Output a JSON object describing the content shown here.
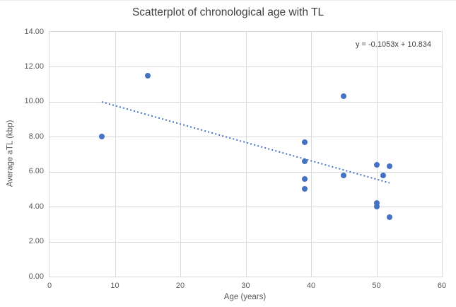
{
  "chart_data": {
    "type": "scatter",
    "title": "Scatterplot of chronological age with TL",
    "xlabel": "Age (years)",
    "ylabel": "Average aTL (kbp)",
    "xlim": [
      0,
      60
    ],
    "ylim": [
      0,
      14
    ],
    "x_ticks": [
      0,
      10,
      20,
      30,
      40,
      50,
      60
    ],
    "y_ticks": [
      0,
      2,
      4,
      6,
      8,
      10,
      12,
      14
    ],
    "y_tick_decimals": 2,
    "grid": true,
    "legend_position": "none",
    "points": [
      {
        "x": 8,
        "y": 8.0
      },
      {
        "x": 15,
        "y": 11.5
      },
      {
        "x": 39,
        "y": 7.7
      },
      {
        "x": 39,
        "y": 6.6
      },
      {
        "x": 39,
        "y": 5.6
      },
      {
        "x": 39,
        "y": 5.0
      },
      {
        "x": 45,
        "y": 10.3
      },
      {
        "x": 45,
        "y": 5.8
      },
      {
        "x": 50,
        "y": 6.4
      },
      {
        "x": 50,
        "y": 4.2
      },
      {
        "x": 50,
        "y": 4.0
      },
      {
        "x": 51,
        "y": 5.8
      },
      {
        "x": 52,
        "y": 6.3
      },
      {
        "x": 52,
        "y": 3.4
      }
    ],
    "trendline": {
      "label": "y = -0.1053x + 10.834",
      "slope": -0.1053,
      "intercept": 10.834,
      "x_start": 8,
      "x_end": 52,
      "style": "dotted"
    },
    "colors": {
      "marker": "#4472C4",
      "trendline": "#4472C4",
      "grid": "#D9D9D9",
      "axis_text": "#595959",
      "title_text": "#404040",
      "background": "#FFFFFF"
    }
  }
}
